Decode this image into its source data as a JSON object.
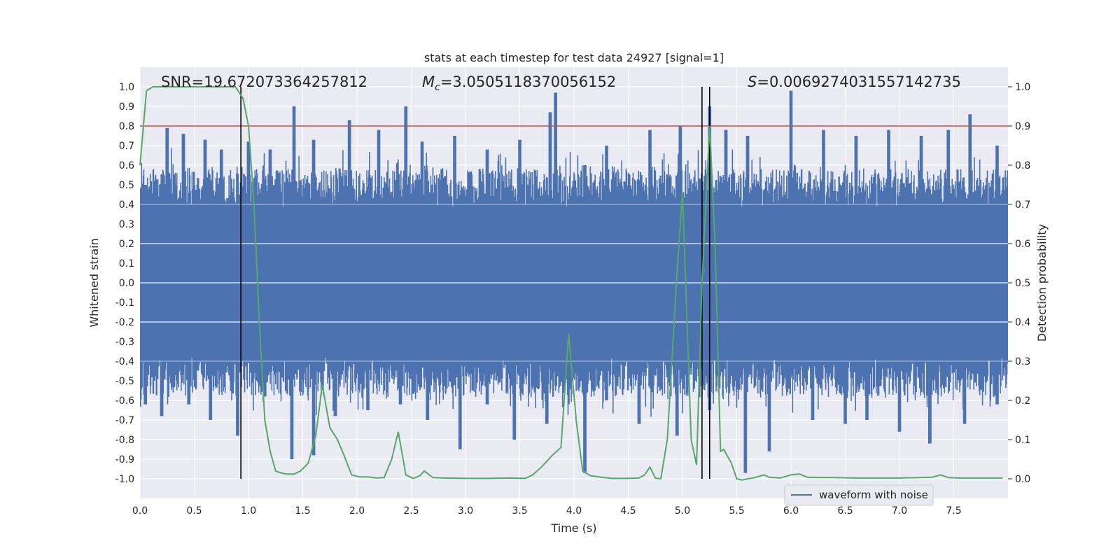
{
  "chart_data": {
    "type": "line",
    "title": "stats at each timestep for test data 24927 [signal=1]",
    "xlabel": "Time (s)",
    "ylabel": "Whitened strain",
    "y2label": "Detection probability",
    "xlim": [
      0,
      8.0
    ],
    "ylim": [
      -1.1,
      1.1
    ],
    "y2lim": [
      -0.05,
      1.05
    ],
    "xticks": [
      0.0,
      0.5,
      1.0,
      1.5,
      2.0,
      2.5,
      3.0,
      3.5,
      4.0,
      4.5,
      5.0,
      5.5,
      6.0,
      6.5,
      7.0,
      7.5
    ],
    "yticks": [
      1.0,
      0.9,
      0.8,
      0.7,
      0.6,
      0.5,
      0.4,
      0.3,
      0.2,
      0.1,
      0.0,
      -0.1,
      -0.2,
      -0.3,
      -0.4,
      -0.5,
      -0.6,
      -0.7,
      -0.8,
      -0.9,
      -1.0
    ],
    "y2ticks": [
      1.0,
      0.9,
      0.8,
      0.7,
      0.6,
      0.5,
      0.4,
      0.3,
      0.2,
      0.1,
      0.0
    ],
    "xtick_labels": [
      "0.0",
      "0.5",
      "1.0",
      "1.5",
      "2.0",
      "2.5",
      "3.0",
      "3.5",
      "4.0",
      "4.5",
      "5.0",
      "5.5",
      "6.0",
      "6.5",
      "7.0",
      "7.5"
    ],
    "ytick_labels": [
      "1.0",
      "0.9",
      "0.8",
      "0.7",
      "0.6",
      "0.5",
      "0.4",
      "0.3",
      "0.2",
      "0.1",
      "0.0",
      "-0.1",
      "-0.2",
      "-0.3",
      "-0.4",
      "-0.5",
      "-0.6",
      "-0.7",
      "-0.8",
      "-0.9",
      "-1.0"
    ],
    "y2tick_labels": [
      "1.0",
      "0.9",
      "0.8",
      "0.7",
      "0.6",
      "0.5",
      "0.4",
      "0.3",
      "0.2",
      "0.1",
      "0.0"
    ],
    "annotations": {
      "snr_label": "SNR=19.672073364257812",
      "mc_symbol": "M",
      "mc_subscript": "c",
      "mc_value": "=3.0505118370056152",
      "s_symbol": "S",
      "s_value": "=0.006927403155714273​5"
    },
    "threshold": {
      "y": 0.8,
      "color": "#c44e52"
    },
    "vertical_lines": [
      0.93,
      5.18,
      5.25
    ],
    "legend": {
      "label": "waveform with noise",
      "placement": "lower-right"
    },
    "series": [
      {
        "name": "waveform with noise",
        "axis": "left",
        "color": "#4c72b0",
        "envelope": "noise spikes ±0.5 to ±1.0 over 0–8 s",
        "peaks_positive": [
          [
            0.05,
            0.5
          ],
          [
            0.25,
            0.79
          ],
          [
            0.4,
            0.76
          ],
          [
            0.6,
            0.73
          ],
          [
            0.75,
            0.68
          ],
          [
            1.0,
            0.72
          ],
          [
            1.2,
            0.68
          ],
          [
            1.42,
            0.9
          ],
          [
            1.6,
            0.73
          ],
          [
            1.93,
            0.83
          ],
          [
            2.2,
            0.78
          ],
          [
            2.45,
            0.9
          ],
          [
            2.6,
            0.72
          ],
          [
            2.9,
            0.75
          ],
          [
            3.2,
            0.68
          ],
          [
            3.5,
            0.73
          ],
          [
            3.78,
            0.87
          ],
          [
            3.83,
            0.97
          ],
          [
            4.1,
            0.6
          ],
          [
            4.3,
            0.7
          ],
          [
            4.7,
            0.78
          ],
          [
            4.98,
            0.8
          ],
          [
            5.25,
            0.9
          ],
          [
            5.4,
            0.78
          ],
          [
            5.6,
            0.75
          ],
          [
            6.0,
            0.98
          ],
          [
            6.3,
            0.78
          ],
          [
            6.6,
            0.75
          ],
          [
            6.9,
            0.78
          ],
          [
            7.2,
            0.75
          ],
          [
            7.45,
            0.78
          ],
          [
            7.65,
            0.86
          ],
          [
            7.9,
            0.7
          ]
        ],
        "peaks_negative": [
          [
            0.05,
            -0.62
          ],
          [
            0.2,
            -0.68
          ],
          [
            0.45,
            -0.62
          ],
          [
            0.65,
            -0.7
          ],
          [
            0.9,
            -0.78
          ],
          [
            1.15,
            -0.58
          ],
          [
            1.4,
            -0.9
          ],
          [
            1.6,
            -0.88
          ],
          [
            1.8,
            -0.68
          ],
          [
            2.1,
            -0.65
          ],
          [
            2.4,
            -0.62
          ],
          [
            2.65,
            -0.7
          ],
          [
            2.95,
            -0.85
          ],
          [
            3.2,
            -0.62
          ],
          [
            3.45,
            -0.8
          ],
          [
            3.75,
            -0.72
          ],
          [
            4.1,
            -0.97
          ],
          [
            4.3,
            -0.6
          ],
          [
            4.6,
            -0.72
          ],
          [
            4.95,
            -0.78
          ],
          [
            5.25,
            -0.65
          ],
          [
            5.58,
            -0.97
          ],
          [
            5.8,
            -0.86
          ],
          [
            6.2,
            -0.7
          ],
          [
            6.5,
            -0.72
          ],
          [
            6.7,
            -0.7
          ],
          [
            7.0,
            -0.76
          ],
          [
            7.28,
            -0.82
          ],
          [
            7.6,
            -0.72
          ],
          [
            7.9,
            -0.62
          ]
        ]
      },
      {
        "name": "detection probability",
        "axis": "right",
        "color": "#55a868",
        "x": [
          0.0,
          0.06,
          0.12,
          0.2,
          0.3,
          0.4,
          0.5,
          0.6,
          0.7,
          0.8,
          0.88,
          0.95,
          1.0,
          1.05,
          1.1,
          1.15,
          1.2,
          1.25,
          1.3,
          1.35,
          1.42,
          1.48,
          1.55,
          1.62,
          1.68,
          1.75,
          1.82,
          1.88,
          1.95,
          2.02,
          2.1,
          2.18,
          2.25,
          2.32,
          2.38,
          2.45,
          2.52,
          2.58,
          2.62,
          2.7,
          2.8,
          3.0,
          3.2,
          3.4,
          3.55,
          3.62,
          3.7,
          3.8,
          3.88,
          3.95,
          4.02,
          4.08,
          4.15,
          4.25,
          4.35,
          4.5,
          4.6,
          4.65,
          4.7,
          4.75,
          4.8,
          4.86,
          4.95,
          5.0,
          5.08,
          5.13,
          5.18,
          5.25,
          5.3,
          5.35,
          5.38,
          5.45,
          5.5,
          5.55,
          5.6,
          5.65,
          5.75,
          5.8,
          5.9,
          6.0,
          6.08,
          6.15,
          6.25,
          6.4,
          6.6,
          6.8,
          7.0,
          7.2,
          7.3,
          7.38,
          7.45,
          7.55,
          7.75,
          7.95
        ],
        "y": [
          0.8,
          0.99,
          1.0,
          1.0,
          1.0,
          1.0,
          1.0,
          1.0,
          1.0,
          1.0,
          1.0,
          0.97,
          0.9,
          0.7,
          0.4,
          0.15,
          0.07,
          0.02,
          0.015,
          0.012,
          0.012,
          0.02,
          0.04,
          0.11,
          0.24,
          0.13,
          0.1,
          0.06,
          0.01,
          0.005,
          0.005,
          0.002,
          0.003,
          0.05,
          0.12,
          0.01,
          0.001,
          0.008,
          0.02,
          0.003,
          0.002,
          0.001,
          0.001,
          0.002,
          0.001,
          0.01,
          0.03,
          0.06,
          0.08,
          0.37,
          0.15,
          0.02,
          0.008,
          0.004,
          0.001,
          0.001,
          0.002,
          0.01,
          0.03,
          0.002,
          0.0,
          0.1,
          0.53,
          0.73,
          0.1,
          0.035,
          0.5,
          0.9,
          0.6,
          0.07,
          0.075,
          0.04,
          0.0,
          -0.003,
          0.0,
          0.002,
          0.01,
          0.004,
          0.002,
          0.01,
          0.012,
          0.004,
          0.003,
          0.003,
          0.002,
          0.002,
          0.002,
          0.003,
          0.004,
          0.01,
          0.003,
          0.002,
          0.002,
          0.002
        ]
      }
    ]
  }
}
